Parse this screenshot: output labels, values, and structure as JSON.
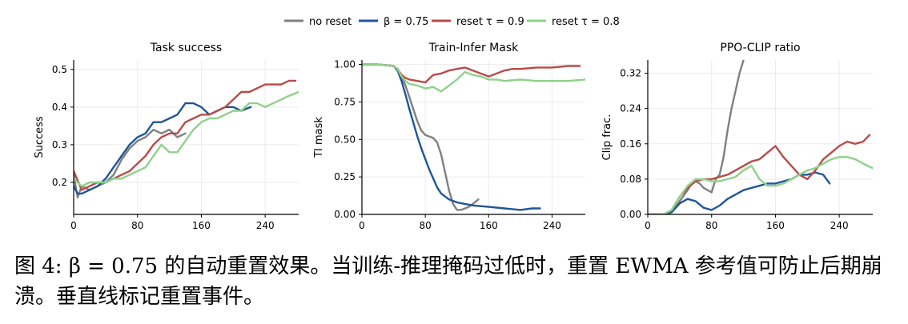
{
  "legend": {
    "entries": [
      {
        "name": "no reset",
        "color": "#808080"
      },
      {
        "name": "β = 0.75",
        "color": "#1f5599"
      },
      {
        "name": "reset τ = 0.9",
        "color": "#b94a48"
      },
      {
        "name": "reset τ = 0.8",
        "color": "#8fd18a"
      }
    ],
    "placement": "top-center"
  },
  "chart_data": [
    {
      "type": "line",
      "title": "Task success",
      "ylabel": "Success",
      "xlabel": "",
      "xlim": [
        0,
        282
      ],
      "ylim": [
        0.115,
        0.525
      ],
      "xticks": [
        "0",
        "80",
        "160",
        "240"
      ],
      "xtick_values": [
        0,
        80,
        160,
        240
      ],
      "yticks": [
        "0.2",
        "0.3",
        "0.4",
        "0.5"
      ],
      "ytick_values": [
        0.2,
        0.3,
        0.4,
        0.5
      ],
      "grid": true,
      "series": [
        {
          "name": "no reset",
          "color": "#808080",
          "x": [
            0,
            5,
            10,
            20,
            30,
            40,
            50,
            60,
            70,
            80,
            90,
            100,
            110,
            120,
            130,
            140
          ],
          "y": [
            0.22,
            0.16,
            0.19,
            0.18,
            0.19,
            0.2,
            0.22,
            0.26,
            0.29,
            0.31,
            0.32,
            0.34,
            0.33,
            0.34,
            0.32,
            0.33
          ]
        },
        {
          "name": "β = 0.75",
          "color": "#1f5599",
          "x": [
            0,
            5,
            10,
            20,
            30,
            40,
            50,
            60,
            70,
            80,
            90,
            100,
            110,
            120,
            130,
            140,
            150,
            160,
            170,
            180,
            190,
            200,
            210,
            222
          ],
          "y": [
            0.19,
            0.17,
            0.17,
            0.18,
            0.19,
            0.21,
            0.24,
            0.27,
            0.3,
            0.32,
            0.33,
            0.36,
            0.36,
            0.37,
            0.38,
            0.41,
            0.41,
            0.4,
            0.38,
            0.39,
            0.4,
            0.4,
            0.39,
            0.4
          ]
        },
        {
          "name": "reset τ = 0.9",
          "color": "#b94a48",
          "x": [
            0,
            10,
            20,
            30,
            40,
            50,
            60,
            70,
            80,
            90,
            100,
            110,
            120,
            130,
            140,
            150,
            160,
            170,
            180,
            190,
            200,
            210,
            220,
            230,
            240,
            250,
            260,
            270,
            278
          ],
          "y": [
            0.23,
            0.18,
            0.19,
            0.2,
            0.2,
            0.21,
            0.22,
            0.23,
            0.25,
            0.27,
            0.3,
            0.32,
            0.33,
            0.33,
            0.36,
            0.37,
            0.38,
            0.38,
            0.39,
            0.4,
            0.42,
            0.44,
            0.44,
            0.45,
            0.46,
            0.46,
            0.46,
            0.47,
            0.47
          ]
        },
        {
          "name": "reset τ = 0.8",
          "color": "#8fd18a",
          "x": [
            0,
            10,
            20,
            30,
            40,
            50,
            60,
            70,
            80,
            90,
            100,
            110,
            120,
            130,
            140,
            150,
            160,
            170,
            180,
            190,
            200,
            210,
            220,
            230,
            240,
            250,
            260,
            270,
            282
          ],
          "y": [
            0.21,
            0.19,
            0.2,
            0.2,
            0.2,
            0.21,
            0.21,
            0.22,
            0.23,
            0.24,
            0.27,
            0.3,
            0.28,
            0.28,
            0.31,
            0.34,
            0.36,
            0.37,
            0.37,
            0.38,
            0.39,
            0.39,
            0.41,
            0.41,
            0.4,
            0.41,
            0.42,
            0.43,
            0.44
          ]
        }
      ]
    },
    {
      "type": "line",
      "title": "Train-Infer Mask",
      "ylabel": "TI mask",
      "xlabel": "",
      "xlim": [
        0,
        282
      ],
      "ylim": [
        0,
        1.03
      ],
      "xticks": [
        "0",
        "80",
        "160",
        "240"
      ],
      "xtick_values": [
        0,
        80,
        160,
        240
      ],
      "yticks": [
        "0.00",
        "0.25",
        "0.50",
        "0.75",
        "1.00"
      ],
      "ytick_values": [
        0,
        0.25,
        0.5,
        0.75,
        1.0
      ],
      "grid": true,
      "series": [
        {
          "name": "no reset",
          "color": "#808080",
          "x": [
            0,
            20,
            40,
            45,
            50,
            55,
            60,
            65,
            70,
            75,
            80,
            85,
            90,
            95,
            100,
            105,
            110,
            115,
            120,
            125,
            130,
            135,
            140,
            147
          ],
          "y": [
            1.0,
            1.0,
            0.99,
            0.97,
            0.92,
            0.86,
            0.78,
            0.7,
            0.62,
            0.56,
            0.53,
            0.52,
            0.51,
            0.48,
            0.4,
            0.28,
            0.16,
            0.07,
            0.03,
            0.03,
            0.04,
            0.05,
            0.07,
            0.1
          ]
        },
        {
          "name": "β = 0.75",
          "color": "#1f5599",
          "x": [
            0,
            20,
            40,
            45,
            50,
            55,
            60,
            65,
            70,
            75,
            80,
            85,
            90,
            95,
            100,
            110,
            120,
            130,
            140,
            160,
            180,
            200,
            215,
            225
          ],
          "y": [
            1.0,
            1.0,
            0.99,
            0.96,
            0.89,
            0.8,
            0.7,
            0.61,
            0.52,
            0.44,
            0.37,
            0.3,
            0.24,
            0.18,
            0.14,
            0.1,
            0.08,
            0.07,
            0.06,
            0.05,
            0.04,
            0.03,
            0.04,
            0.04
          ]
        },
        {
          "name": "reset τ = 0.9",
          "color": "#b94a48",
          "x": [
            0,
            20,
            40,
            45,
            50,
            55,
            60,
            70,
            80,
            90,
            100,
            110,
            120,
            130,
            140,
            150,
            160,
            170,
            180,
            190,
            200,
            220,
            240,
            260,
            275
          ],
          "y": [
            1.0,
            1.0,
            0.99,
            0.97,
            0.93,
            0.91,
            0.9,
            0.89,
            0.88,
            0.93,
            0.94,
            0.96,
            0.97,
            0.98,
            0.96,
            0.94,
            0.92,
            0.94,
            0.96,
            0.97,
            0.97,
            0.98,
            0.98,
            0.99,
            0.99
          ]
        },
        {
          "name": "reset τ = 0.8",
          "color": "#8fd18a",
          "x": [
            0,
            20,
            40,
            45,
            50,
            55,
            60,
            70,
            80,
            90,
            100,
            110,
            120,
            130,
            140,
            150,
            160,
            170,
            180,
            200,
            220,
            240,
            260,
            282
          ],
          "y": [
            1.0,
            1.0,
            0.99,
            0.97,
            0.92,
            0.89,
            0.87,
            0.86,
            0.84,
            0.85,
            0.82,
            0.86,
            0.9,
            0.95,
            0.93,
            0.92,
            0.9,
            0.9,
            0.89,
            0.9,
            0.89,
            0.89,
            0.89,
            0.9
          ]
        }
      ]
    },
    {
      "type": "line",
      "title": "PPO-CLIP ratio",
      "ylabel": "Clip frac.",
      "xlabel": "",
      "xlim": [
        0,
        282
      ],
      "ylim": [
        0,
        0.35
      ],
      "xticks": [
        "0",
        "80",
        "160",
        "240"
      ],
      "xtick_values": [
        0,
        80,
        160,
        240
      ],
      "yticks": [
        "0.00",
        "0.08",
        "0.16",
        "0.24",
        "0.32"
      ],
      "ytick_values": [
        0,
        0.08,
        0.16,
        0.24,
        0.32
      ],
      "grid": true,
      "series": [
        {
          "name": "no reset",
          "color": "#808080",
          "x": [
            0,
            20,
            30,
            40,
            50,
            55,
            60,
            65,
            70,
            75,
            80,
            85,
            90,
            95,
            100,
            105,
            110,
            115,
            120
          ],
          "y": [
            0,
            0,
            0.005,
            0.03,
            0.055,
            0.07,
            0.075,
            0.07,
            0.06,
            0.055,
            0.05,
            0.08,
            0.09,
            0.13,
            0.19,
            0.24,
            0.28,
            0.32,
            0.35
          ]
        },
        {
          "name": "β = 0.75",
          "color": "#1f5599",
          "x": [
            0,
            20,
            30,
            40,
            50,
            60,
            70,
            80,
            90,
            100,
            110,
            120,
            130,
            140,
            150,
            160,
            170,
            180,
            190,
            200,
            210,
            220,
            228
          ],
          "y": [
            0,
            0,
            0.005,
            0.025,
            0.035,
            0.03,
            0.015,
            0.01,
            0.02,
            0.035,
            0.045,
            0.055,
            0.06,
            0.065,
            0.07,
            0.07,
            0.075,
            0.08,
            0.09,
            0.09,
            0.095,
            0.09,
            0.07
          ]
        },
        {
          "name": "reset τ = 0.9",
          "color": "#b94a48",
          "x": [
            0,
            20,
            30,
            40,
            50,
            60,
            70,
            80,
            90,
            100,
            110,
            120,
            130,
            140,
            150,
            160,
            170,
            180,
            190,
            200,
            210,
            220,
            230,
            240,
            250,
            260,
            270,
            278
          ],
          "y": [
            0,
            0,
            0.01,
            0.04,
            0.06,
            0.075,
            0.08,
            0.08,
            0.085,
            0.09,
            0.1,
            0.11,
            0.12,
            0.125,
            0.14,
            0.155,
            0.13,
            0.11,
            0.09,
            0.08,
            0.1,
            0.125,
            0.14,
            0.155,
            0.165,
            0.16,
            0.165,
            0.18
          ]
        },
        {
          "name": "reset τ = 0.8",
          "color": "#8fd18a",
          "x": [
            0,
            20,
            30,
            40,
            50,
            60,
            70,
            80,
            90,
            100,
            110,
            120,
            130,
            140,
            150,
            160,
            170,
            180,
            190,
            200,
            210,
            220,
            230,
            240,
            250,
            260,
            270,
            282
          ],
          "y": [
            0,
            0,
            0.01,
            0.04,
            0.065,
            0.08,
            0.08,
            0.075,
            0.075,
            0.08,
            0.085,
            0.1,
            0.11,
            0.08,
            0.065,
            0.065,
            0.07,
            0.08,
            0.09,
            0.1,
            0.105,
            0.115,
            0.125,
            0.13,
            0.13,
            0.125,
            0.115,
            0.105
          ]
        }
      ]
    }
  ],
  "caption": {
    "text": "图 4: β = 0.75 的自动重置效果。当训练-推理掩码过低时，重置 EWMA 参考值可防止后期崩溃。垂直线标记重置事件。"
  }
}
